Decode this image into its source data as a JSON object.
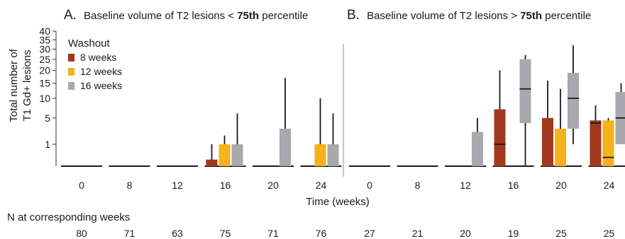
{
  "chart_data": {
    "type": "boxplot",
    "y_axis": {
      "label_line1": "Total number of",
      "label_line2": "T1 Gd+ lesions",
      "ticks": [
        "1",
        "5",
        "10",
        "15",
        "20",
        "25",
        "30",
        "35",
        "40"
      ],
      "scale": "sqrt"
    },
    "x_axis": {
      "label": "Time (weeks)",
      "ticks": [
        "0",
        "8",
        "12",
        "16",
        "20",
        "24"
      ]
    },
    "legend": {
      "title": "Washout",
      "placement": "top-left",
      "items": [
        {
          "name": "8 weeks",
          "color": "#A0391F"
        },
        {
          "name": "12 weeks",
          "color": "#F6B21B"
        },
        {
          "name": "16 weeks",
          "color": "#A7A9AC"
        }
      ]
    },
    "n_label": "N at corresponding weeks",
    "panels": [
      {
        "letter": "A.",
        "title_pre": "Baseline volume of T2 lesions < ",
        "title_bold": "75th",
        "title_post": " percentile",
        "n_values": [
          "80",
          "71",
          "63",
          "75",
          "71",
          "76"
        ],
        "groups": [
          {
            "week": "0",
            "boxes": []
          },
          {
            "week": "8",
            "boxes": []
          },
          {
            "week": "12",
            "boxes": []
          },
          {
            "week": "16",
            "boxes": [
              {
                "series": "8 weeks",
                "min": 0,
                "q1": 0,
                "median": 0,
                "q3": 0.3,
                "max": 1
              },
              {
                "series": "12 weeks",
                "min": 0,
                "q1": 0,
                "median": 0,
                "q3": 1,
                "max": 2
              },
              {
                "series": "16 weeks",
                "min": 0,
                "q1": 0,
                "median": 0,
                "q3": 1,
                "max": 6
              }
            ]
          },
          {
            "week": "20",
            "boxes": [
              {
                "series": "16 weeks",
                "min": 0,
                "q1": 0,
                "median": 0,
                "q3": 3,
                "max": 17
              }
            ]
          },
          {
            "week": "24",
            "boxes": [
              {
                "series": "12 weeks",
                "min": 0,
                "q1": 0,
                "median": 0,
                "q3": 1,
                "max": 10
              },
              {
                "series": "16 weeks",
                "min": 0,
                "q1": 0,
                "median": 0,
                "q3": 1,
                "max": 6
              }
            ]
          }
        ]
      },
      {
        "letter": "B.",
        "title_pre": "Baseline volume of T2 lesions > ",
        "title_bold": "75th",
        "title_post": " percentile",
        "n_values": [
          "27",
          "21",
          "20",
          "19",
          "25",
          "25"
        ],
        "groups": [
          {
            "week": "0",
            "boxes": []
          },
          {
            "week": "8",
            "boxes": []
          },
          {
            "week": "12",
            "boxes": [
              {
                "series": "16 weeks",
                "min": 0,
                "q1": 0,
                "median": 0,
                "q3": 2.5,
                "max": 5
              }
            ]
          },
          {
            "week": "16",
            "boxes": [
              {
                "series": "8 weeks",
                "min": 0,
                "q1": 0,
                "median": 1,
                "q3": 7,
                "max": 20
              },
              {
                "series": "16 weeks",
                "min": 0,
                "q1": 4,
                "median": 13,
                "q3": 25,
                "max": 27
              }
            ]
          },
          {
            "week": "20",
            "boxes": [
              {
                "series": "8 weeks",
                "min": 0,
                "q1": 0,
                "median": 0,
                "q3": 5,
                "max": 16
              },
              {
                "series": "12 weeks",
                "min": 0,
                "q1": 0,
                "median": 0,
                "q3": 3,
                "max": 13
              },
              {
                "series": "16 weeks",
                "min": 1,
                "q1": 3,
                "median": 10,
                "q3": 19,
                "max": 32
              }
            ]
          },
          {
            "week": "24",
            "boxes": [
              {
                "series": "8 weeks",
                "min": 0,
                "q1": 0,
                "median": 4,
                "q3": 4.5,
                "max": 8
              },
              {
                "series": "12 weeks",
                "min": 0,
                "q1": 0,
                "median": 0.4,
                "q3": 4.5,
                "max": 5
              },
              {
                "series": "16 weeks",
                "min": 1,
                "q1": 1,
                "median": 5,
                "q3": 12,
                "max": 15
              }
            ]
          }
        ]
      }
    ]
  }
}
